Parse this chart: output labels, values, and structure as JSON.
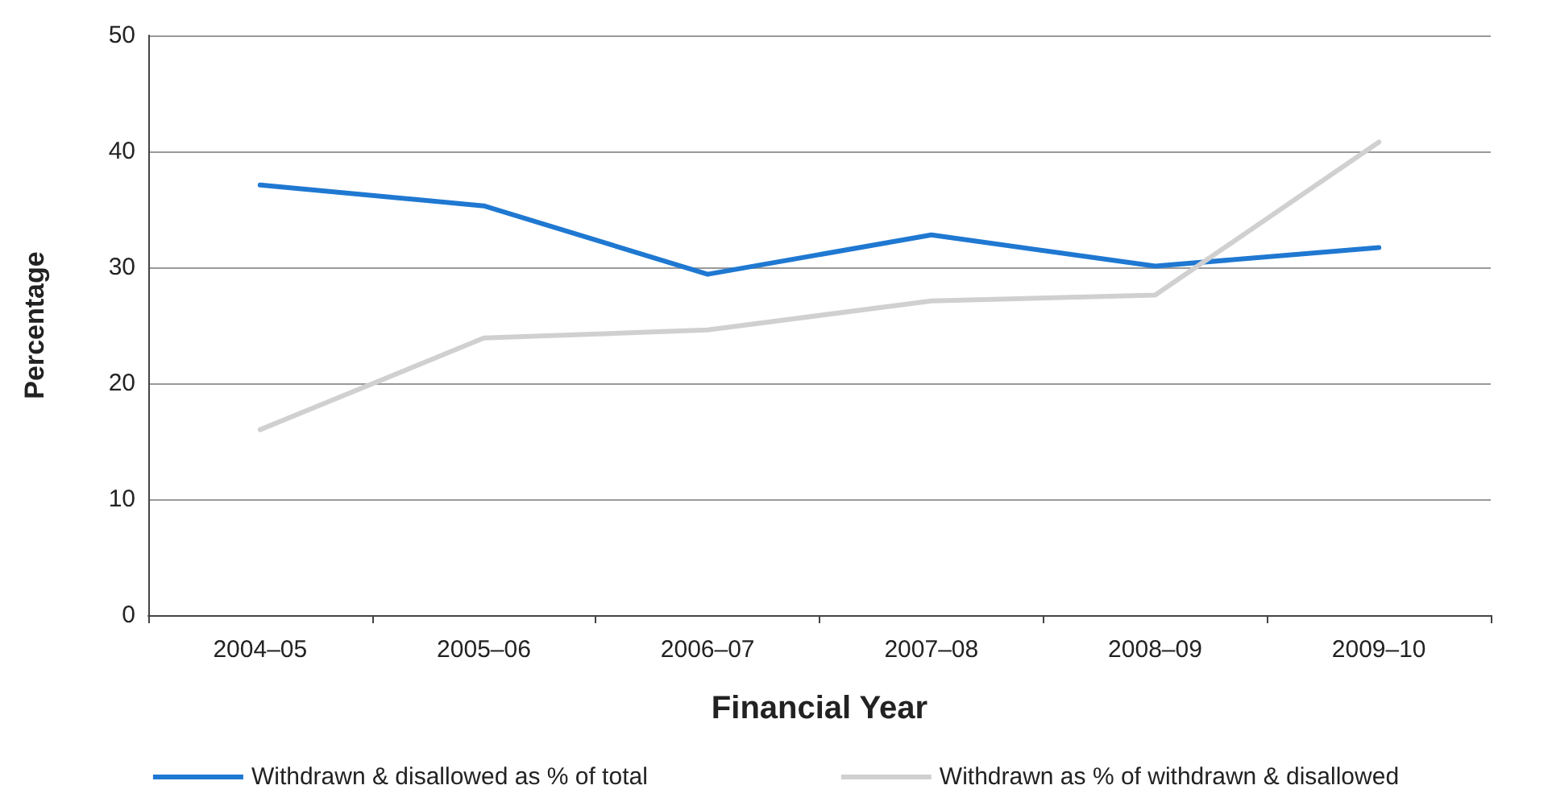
{
  "chart_data": {
    "type": "line",
    "xlabel": "Financial Year",
    "ylabel": "Percentage",
    "categories": [
      "2004–05",
      "2005–06",
      "2006–07",
      "2007–08",
      "2008–09",
      "2009–10"
    ],
    "series": [
      {
        "name": "Withdrawn & disallowed as % of total",
        "color": "#1f78d1",
        "values": [
          37.1,
          35.3,
          29.4,
          32.8,
          30.1,
          31.7
        ]
      },
      {
        "name": "Withdrawn as % of withdrawn & disallowed",
        "color": "#d0d0d0",
        "values": [
          16.0,
          23.9,
          24.6,
          27.1,
          27.6,
          40.8
        ]
      }
    ],
    "ylim": [
      0,
      50
    ],
    "yticks": [
      0,
      10,
      20,
      30,
      40,
      50
    ],
    "grid": "y",
    "legend": "bottom",
    "marker": "none",
    "line_style": "solid"
  }
}
